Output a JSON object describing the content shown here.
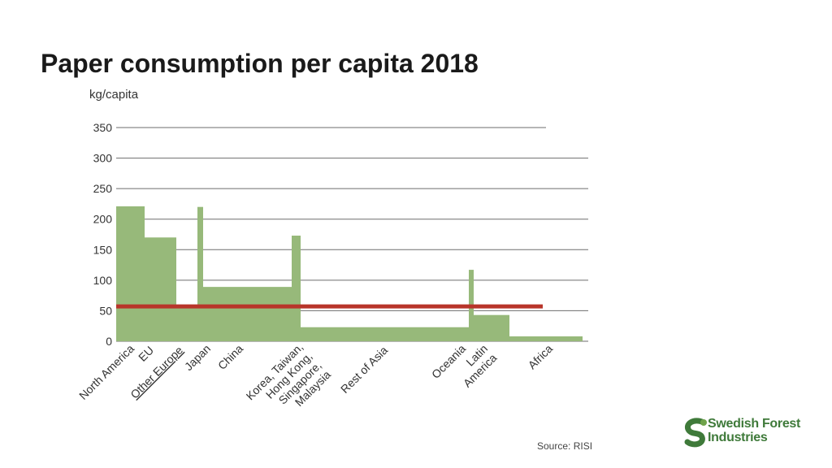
{
  "chart_data": {
    "type": "bar",
    "title": "Paper consumption per capita 2018",
    "ylabel": "kg/capita",
    "xlabel": "",
    "ylim": [
      0,
      350
    ],
    "yticks": [
      0,
      50,
      100,
      150,
      200,
      250,
      300,
      350
    ],
    "grid": true,
    "categories": [
      "North America",
      "EU",
      "Other Europe",
      "Japan",
      "China",
      "Korea, Taiwan, Hong Kong, Singapore, Malaysia",
      "Rest of Asia",
      "Oceania",
      "Latin America",
      "Africa"
    ],
    "values": [
      221,
      170,
      60,
      220,
      89,
      173,
      23,
      117,
      43,
      8
    ],
    "reference_line": {
      "value": 57
    },
    "colors": {
      "bars": "#97b97a",
      "reference_line": "#b8352a",
      "grid": "#6e6e6e"
    }
  },
  "footer": {
    "source": "Source: RISI",
    "logo_line1": "Swedish Forest",
    "logo_line2": "Industries",
    "logo_icon": "sfi-logo-icon"
  }
}
